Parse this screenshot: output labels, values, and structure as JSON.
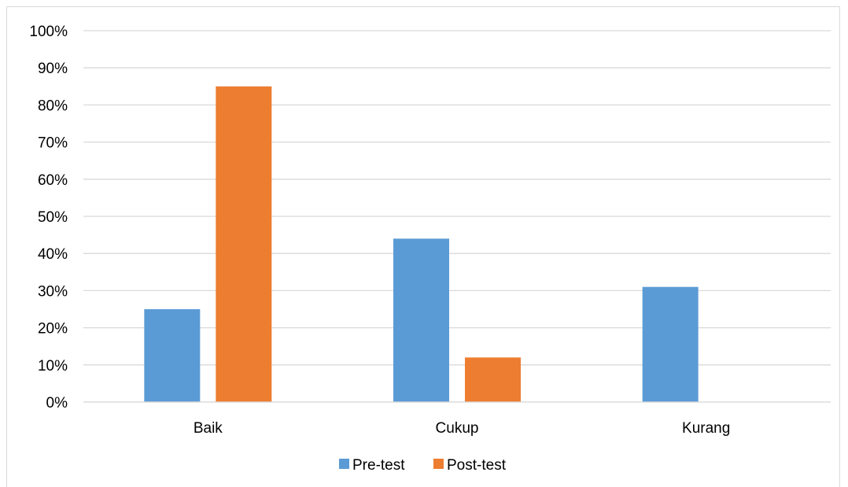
{
  "chart_data": {
    "type": "bar",
    "categories": [
      "Baik",
      "Cukup",
      "Kurang"
    ],
    "series": [
      {
        "name": "Pre-test",
        "values": [
          25,
          44,
          31
        ],
        "color": "#5b9bd5"
      },
      {
        "name": "Post-test",
        "values": [
          85,
          12,
          0
        ],
        "color": "#ed7d31"
      }
    ],
    "ylim": [
      0,
      100
    ],
    "ytick_labels": [
      "0%",
      "10%",
      "20%",
      "30%",
      "40%",
      "50%",
      "60%",
      "70%",
      "80%",
      "90%",
      "100%"
    ],
    "grid": true,
    "legend_position": "bottom",
    "gridline_color": "#d9d9d9"
  }
}
